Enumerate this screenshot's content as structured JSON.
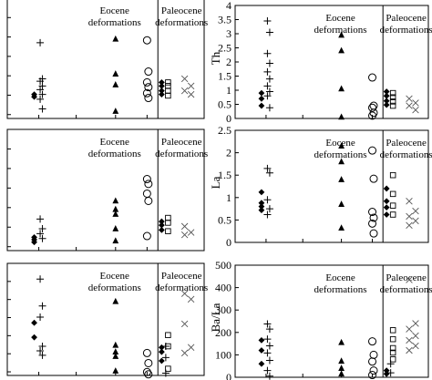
{
  "chart_data": [
    {
      "id": "top-left",
      "type": "scatter",
      "ylabel": "",
      "ylim": [
        0,
        1
      ],
      "ticks": [],
      "show_tick_labels": false,
      "annotations": [
        "Eocene",
        "deformations",
        "Paleocene",
        "deformations"
      ],
      "series": [
        {
          "marker": "diamond",
          "points": [
            [
              1,
              0.18
            ],
            [
              1,
              0.2
            ]
          ]
        },
        {
          "marker": "plus",
          "points": [
            [
              1,
              0.63
            ],
            [
              1,
              0.33
            ],
            [
              1,
              0.31
            ],
            [
              1,
              0.27
            ],
            [
              1,
              0.24
            ],
            [
              1,
              0.2
            ],
            [
              1,
              0.16
            ],
            [
              1,
              0.08
            ]
          ]
        },
        {
          "marker": "triangle",
          "points": [
            [
              2,
              0.66
            ],
            [
              2,
              0.37
            ],
            [
              2,
              0.28
            ],
            [
              2,
              0.06
            ]
          ]
        },
        {
          "marker": "circle",
          "points": [
            [
              3,
              0.65
            ],
            [
              3,
              0.39
            ],
            [
              3,
              0.3
            ],
            [
              3,
              0.26
            ],
            [
              3,
              0.21
            ],
            [
              3,
              0.17
            ]
          ]
        },
        {
          "marker": "diamond",
          "points": [
            [
              4,
              0.3
            ],
            [
              4,
              0.27
            ],
            [
              4,
              0.23
            ],
            [
              4,
              0.2
            ]
          ]
        },
        {
          "marker": "square",
          "points": [
            [
              4,
              0.3
            ],
            [
              4,
              0.27
            ],
            [
              4,
              0.23
            ],
            [
              4,
              0.19
            ]
          ]
        },
        {
          "marker": "cross",
          "points": [
            [
              5,
              0.33
            ],
            [
              5,
              0.27
            ],
            [
              5,
              0.23
            ],
            [
              5,
              0.2
            ]
          ]
        }
      ]
    },
    {
      "id": "top-right",
      "type": "scatter",
      "ylabel": "Th",
      "ylim": [
        0,
        4
      ],
      "ticks": [
        0,
        0.5,
        1,
        1.5,
        2,
        2.5,
        3,
        3.5,
        4
      ],
      "show_tick_labels": true,
      "annotations": [
        "Eocene",
        "deformations",
        "Paleocene",
        "deformations"
      ],
      "series": [
        {
          "marker": "diamond",
          "points": [
            [
              1,
              0.9
            ],
            [
              1,
              0.7
            ],
            [
              1,
              0.45
            ]
          ]
        },
        {
          "marker": "plus",
          "points": [
            [
              1,
              3.45
            ],
            [
              1,
              3.05
            ],
            [
              1,
              2.3
            ],
            [
              1,
              1.95
            ],
            [
              1,
              1.65
            ],
            [
              1,
              1.4
            ],
            [
              1,
              1.15
            ],
            [
              1,
              0.95
            ],
            [
              1,
              0.8
            ],
            [
              1,
              0.38
            ]
          ]
        },
        {
          "marker": "triangle",
          "points": [
            [
              2,
              2.95
            ],
            [
              2,
              2.4
            ],
            [
              2,
              1.05
            ],
            [
              2,
              0.05
            ]
          ]
        },
        {
          "marker": "circle",
          "points": [
            [
              3,
              1.45
            ],
            [
              3,
              0.45
            ],
            [
              3,
              0.38
            ],
            [
              3,
              0.2
            ],
            [
              3,
              0.1
            ]
          ]
        },
        {
          "marker": "diamond",
          "points": [
            [
              4,
              0.95
            ],
            [
              4,
              0.8
            ],
            [
              4,
              0.62
            ],
            [
              4,
              0.48
            ]
          ]
        },
        {
          "marker": "square",
          "points": [
            [
              4,
              0.9
            ],
            [
              4,
              0.75
            ],
            [
              4,
              0.6
            ],
            [
              4,
              0.45
            ]
          ]
        },
        {
          "marker": "cross",
          "points": [
            [
              5,
              0.7
            ],
            [
              5,
              0.55
            ],
            [
              5,
              0.45
            ],
            [
              5,
              0.3
            ]
          ]
        }
      ]
    },
    {
      "id": "mid-left",
      "type": "scatter",
      "ylabel": "",
      "ylim": [
        0,
        1
      ],
      "ticks": [],
      "show_tick_labels": false,
      "annotations": [
        "Eocene",
        "deformations",
        "Paleocene",
        "deformations"
      ],
      "series": [
        {
          "marker": "diamond",
          "points": [
            [
              1,
              0.11
            ],
            [
              1,
              0.09
            ],
            [
              1,
              0.07
            ]
          ]
        },
        {
          "marker": "plus",
          "points": [
            [
              1,
              0.26
            ],
            [
              1,
              0.18
            ],
            [
              1,
              0.14
            ],
            [
              1,
              0.1
            ]
          ]
        },
        {
          "marker": "triangle",
          "points": [
            [
              2,
              0.41
            ],
            [
              2,
              0.34
            ],
            [
              2,
              0.3
            ],
            [
              2,
              0.18
            ],
            [
              2,
              0.08
            ]
          ]
        },
        {
          "marker": "circle",
          "points": [
            [
              3,
              0.59
            ],
            [
              3,
              0.55
            ],
            [
              3,
              0.47
            ],
            [
              3,
              0.41
            ],
            [
              3,
              0.12
            ]
          ]
        },
        {
          "marker": "diamond",
          "points": [
            [
              4,
              0.24
            ],
            [
              4,
              0.21
            ],
            [
              4,
              0.17
            ]
          ]
        },
        {
          "marker": "square",
          "points": [
            [
              4,
              0.27
            ],
            [
              4,
              0.23
            ],
            [
              4,
              0.16
            ]
          ]
        },
        {
          "marker": "cross",
          "points": [
            [
              5,
              0.2
            ],
            [
              5,
              0.15
            ],
            [
              5,
              0.13
            ]
          ]
        }
      ]
    },
    {
      "id": "mid-right",
      "type": "scatter",
      "ylabel": "La",
      "ylim": [
        0,
        2.5
      ],
      "ticks": [
        0,
        0.5,
        1,
        1.5,
        2,
        2.5
      ],
      "show_tick_labels": true,
      "annotations": [
        "Eocene",
        "deformations",
        "Paleocene",
        "deformations"
      ],
      "series": [
        {
          "marker": "diamond",
          "points": [
            [
              1,
              1.12
            ],
            [
              1,
              0.88
            ],
            [
              1,
              0.8
            ],
            [
              1,
              0.72
            ]
          ]
        },
        {
          "marker": "plus",
          "points": [
            [
              1,
              1.65
            ],
            [
              1,
              1.55
            ],
            [
              1,
              0.95
            ],
            [
              1,
              0.75
            ],
            [
              1,
              0.62
            ]
          ]
        },
        {
          "marker": "triangle",
          "points": [
            [
              2,
              2.15
            ],
            [
              2,
              1.8
            ],
            [
              2,
              1.4
            ],
            [
              2,
              0.85
            ],
            [
              2,
              0.32
            ]
          ]
        },
        {
          "marker": "circle",
          "points": [
            [
              3,
              2.05
            ],
            [
              3,
              1.42
            ],
            [
              3,
              0.68
            ],
            [
              3,
              0.55
            ],
            [
              3,
              0.42
            ],
            [
              3,
              0.2
            ]
          ]
        },
        {
          "marker": "diamond",
          "points": [
            [
              4,
              1.2
            ],
            [
              4,
              0.92
            ],
            [
              4,
              0.78
            ],
            [
              4,
              0.62
            ]
          ]
        },
        {
          "marker": "square",
          "points": [
            [
              4,
              1.5
            ],
            [
              4,
              1.08
            ],
            [
              4,
              0.82
            ],
            [
              4,
              0.62
            ]
          ]
        },
        {
          "marker": "cross",
          "points": [
            [
              5,
              0.92
            ],
            [
              5,
              0.7
            ],
            [
              5,
              0.58
            ],
            [
              5,
              0.48
            ],
            [
              5,
              0.38
            ]
          ]
        }
      ]
    },
    {
      "id": "bottom-left",
      "type": "scatter",
      "ylabel": "",
      "ylim": [
        0,
        1
      ],
      "ticks": [],
      "show_tick_labels": false,
      "annotations": [
        "Eocene",
        "deformations",
        "Paleocene",
        "deformations"
      ],
      "series": [
        {
          "marker": "diamond",
          "points": [
            [
              1,
              0.47
            ],
            [
              1,
              0.34
            ]
          ]
        },
        {
          "marker": "plus",
          "points": [
            [
              1,
              0.86
            ],
            [
              1,
              0.62
            ],
            [
              1,
              0.52
            ],
            [
              1,
              0.26
            ],
            [
              1,
              0.22
            ],
            [
              1,
              0.18
            ]
          ]
        },
        {
          "marker": "triangle",
          "points": [
            [
              2,
              0.66
            ],
            [
              2,
              0.27
            ],
            [
              2,
              0.21
            ],
            [
              2,
              0.17
            ],
            [
              2,
              0.04
            ]
          ]
        },
        {
          "marker": "circle",
          "points": [
            [
              3,
              0.2
            ],
            [
              3,
              0.11
            ],
            [
              3,
              0.03
            ],
            [
              3,
              0.01
            ]
          ]
        },
        {
          "marker": "diamond",
          "points": [
            [
              4,
              0.25
            ],
            [
              4,
              0.21
            ],
            [
              4,
              0.13
            ]
          ]
        },
        {
          "marker": "square",
          "points": [
            [
              4,
              0.36
            ],
            [
              4,
              0.26
            ],
            [
              4,
              0.06
            ]
          ]
        },
        {
          "marker": "plus",
          "points": [
            [
              4,
              0.26
            ],
            [
              4,
              0.16
            ],
            [
              4,
              0.02
            ]
          ]
        },
        {
          "marker": "cross",
          "points": [
            [
              5,
              0.73
            ],
            [
              5,
              0.68
            ],
            [
              5,
              0.46
            ],
            [
              5,
              0.25
            ],
            [
              5,
              0.2
            ]
          ]
        }
      ]
    },
    {
      "id": "bottom-right",
      "type": "scatter",
      "ylabel": "Ba/La",
      "ylim": [
        0,
        500
      ],
      "ticks": [
        0,
        100,
        200,
        300,
        400,
        500
      ],
      "show_tick_labels": true,
      "annotations": [
        "Eocene",
        "deformations",
        "Paleocene",
        "deformations"
      ],
      "series": [
        {
          "marker": "diamond",
          "points": [
            [
              1,
              165
            ],
            [
              1,
              120
            ],
            [
              1,
              60
            ]
          ]
        },
        {
          "marker": "plus",
          "points": [
            [
              1,
              238
            ],
            [
              1,
              215
            ],
            [
              1,
              170
            ],
            [
              1,
              140
            ],
            [
              1,
              108
            ],
            [
              1,
              75
            ],
            [
              1,
              30
            ],
            [
              1,
              5
            ]
          ]
        },
        {
          "marker": "triangle",
          "points": [
            [
              2,
              155
            ],
            [
              2,
              72
            ],
            [
              2,
              40
            ],
            [
              2,
              15
            ]
          ]
        },
        {
          "marker": "circle",
          "points": [
            [
              3,
              160
            ],
            [
              3,
              100
            ],
            [
              3,
              70
            ],
            [
              3,
              30
            ],
            [
              3,
              10
            ]
          ]
        },
        {
          "marker": "diamond",
          "points": [
            [
              4,
              30
            ],
            [
              4,
              15
            ]
          ]
        },
        {
          "marker": "square",
          "points": [
            [
              4,
              210
            ],
            [
              4,
              170
            ],
            [
              4,
              130
            ],
            [
              4,
              110
            ],
            [
              4,
              80
            ]
          ]
        },
        {
          "marker": "plus",
          "points": [
            [
              4,
              60
            ],
            [
              4,
              20
            ]
          ]
        },
        {
          "marker": "cross",
          "points": [
            [
              5,
              435
            ],
            [
              5,
              240
            ],
            [
              5,
              215
            ],
            [
              5,
              185
            ],
            [
              5,
              165
            ],
            [
              5,
              140
            ],
            [
              5,
              120
            ]
          ]
        }
      ]
    }
  ]
}
